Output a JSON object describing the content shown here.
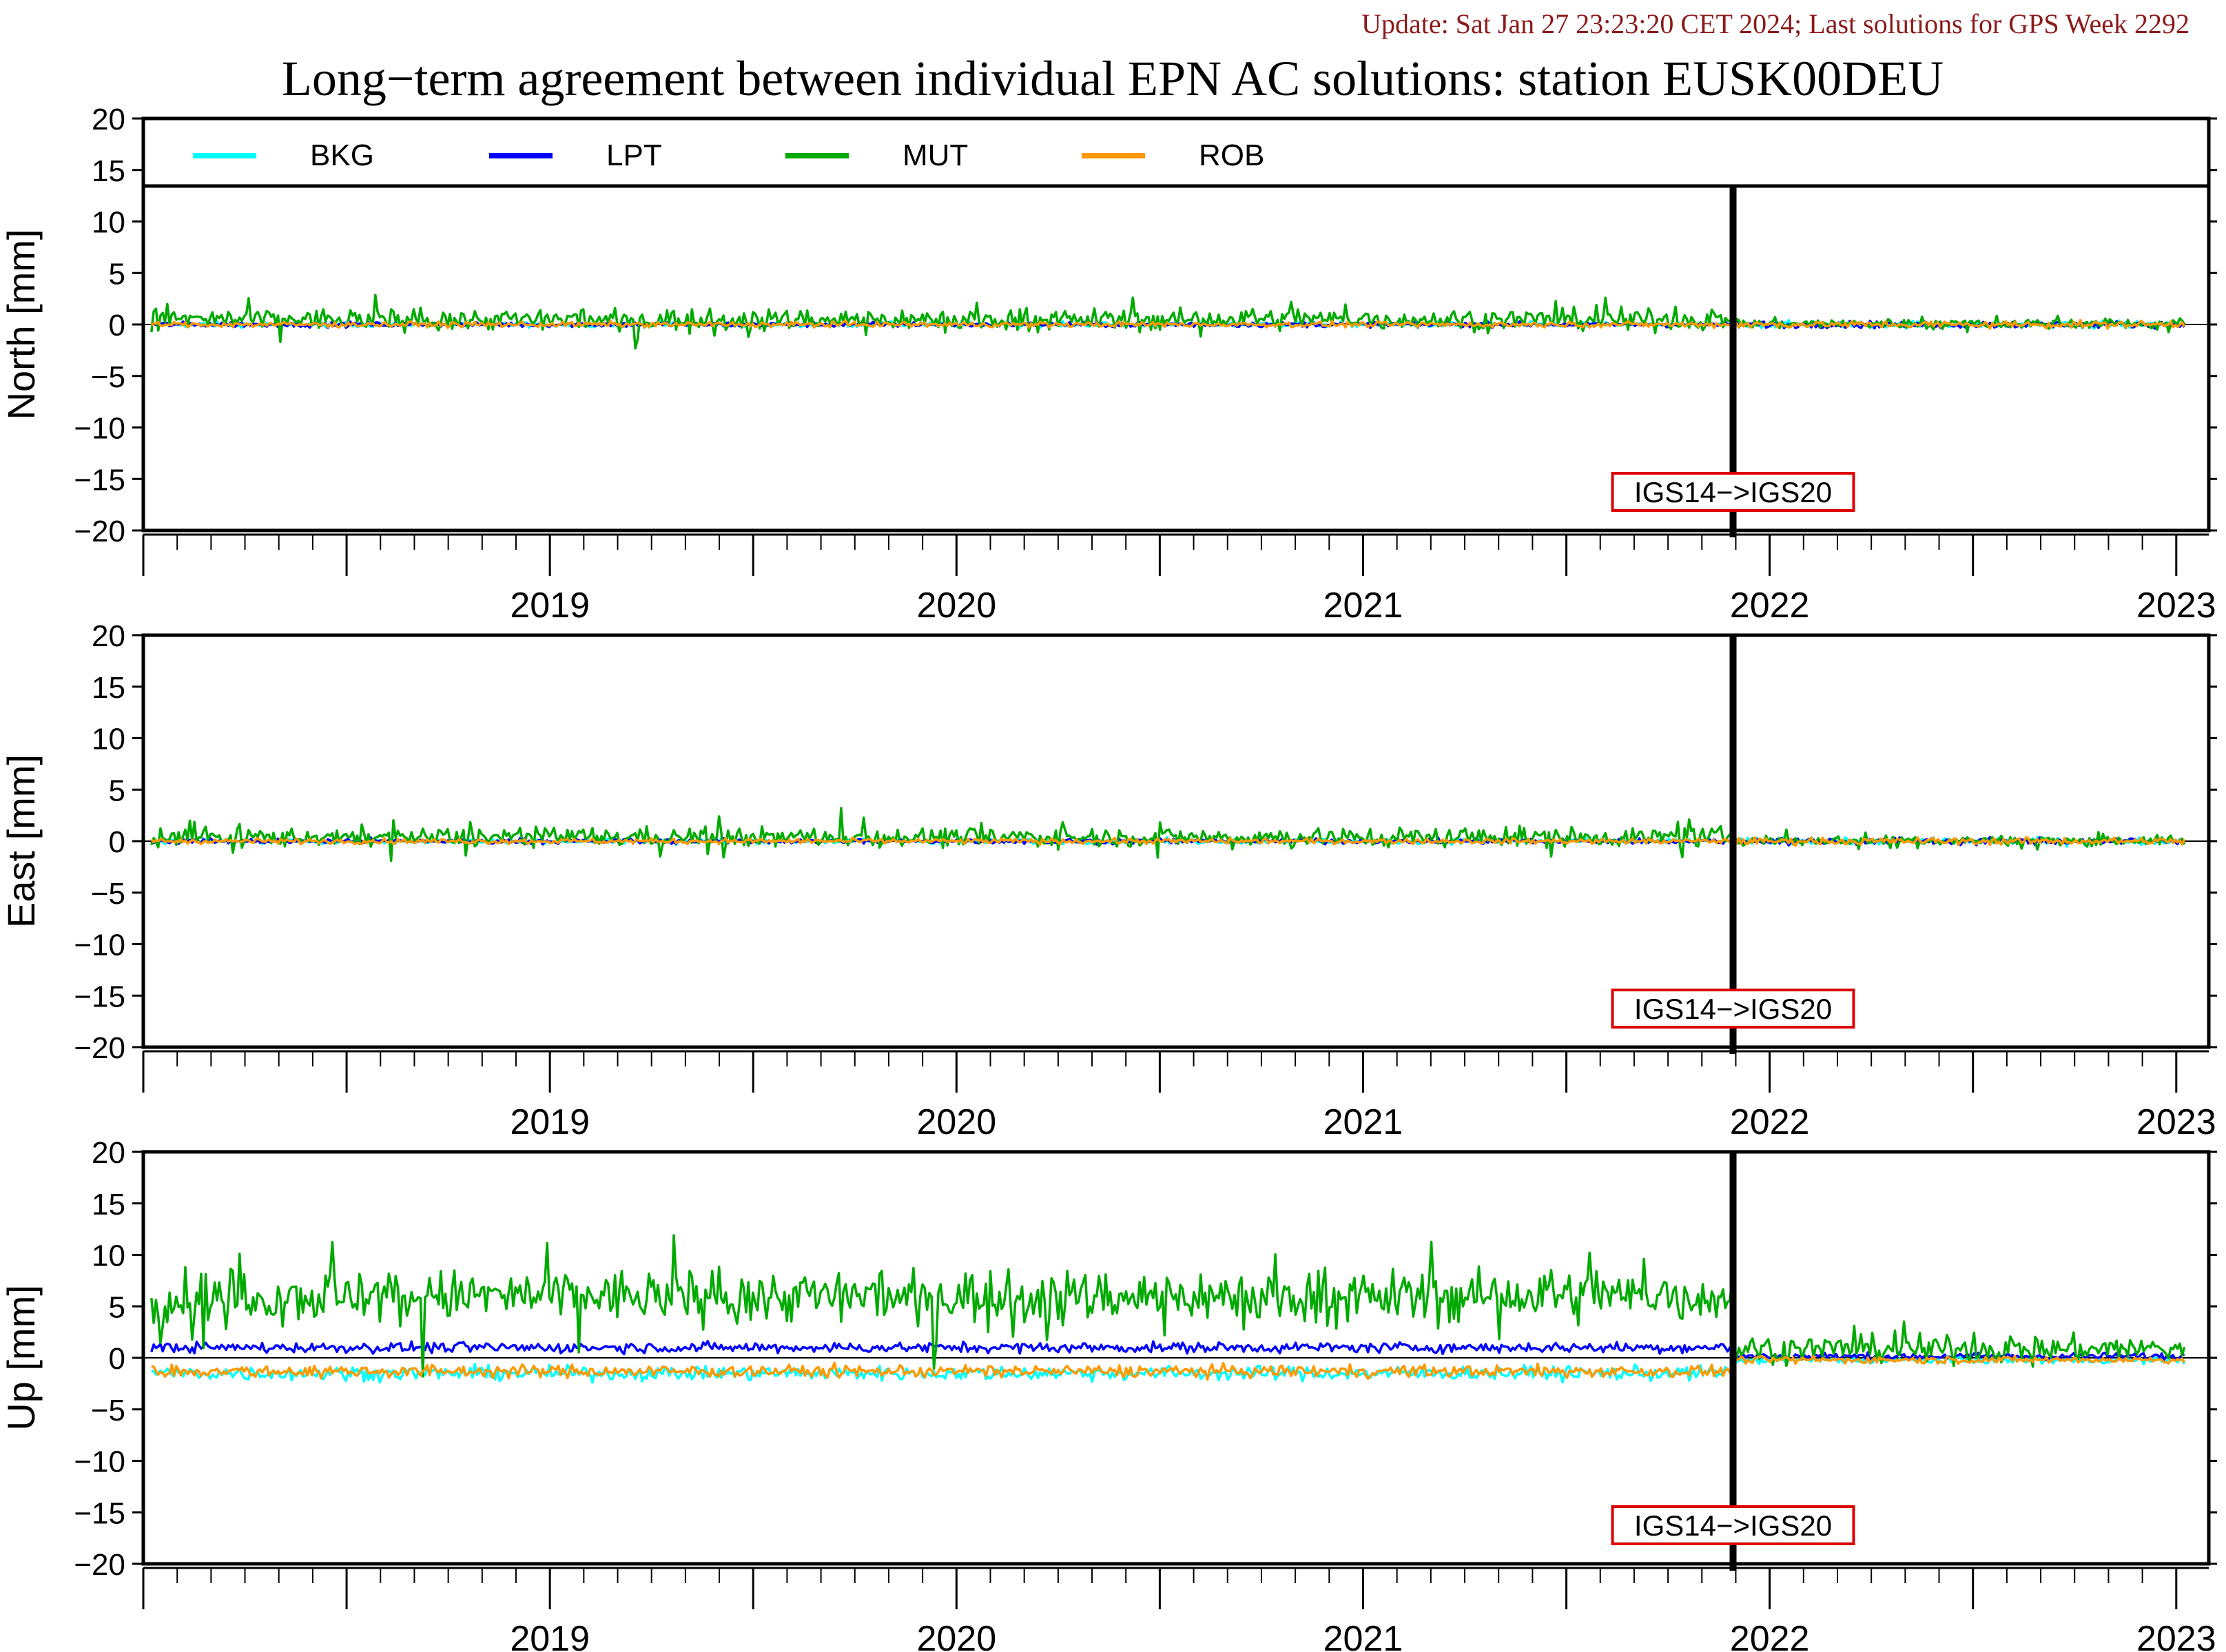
{
  "update_text": "Update: Sat Jan 27 23:23:20 CET 2024; Last solutions for GPS Week 2292",
  "title": "Long−term agreement between individual EPN AC solutions: station EUSK00DEU",
  "legend": [
    {
      "name": "BKG",
      "color": "#00ffff"
    },
    {
      "name": "LPT",
      "color": "#0000ff"
    },
    {
      "name": "MUT",
      "color": "#00aa00"
    },
    {
      "name": "ROB",
      "color": "#ff9900"
    }
  ],
  "chart_data": [
    {
      "type": "line",
      "ylabel": "North [mm]",
      "ylim": [
        -20,
        20
      ],
      "yticks": [
        20,
        15,
        10,
        5,
        0,
        -5,
        -10,
        -15,
        -20
      ],
      "xlim": [
        2018.5,
        2023.58
      ],
      "xtick_labels": [
        "2019",
        "2020",
        "2021",
        "2022",
        "2023"
      ],
      "reference_change": {
        "x": 2022.41,
        "label": "IGS14−>IGS20"
      },
      "series": [
        {
          "name": "BKG",
          "typical_level": 0.0,
          "spread": 0.3
        },
        {
          "name": "LPT",
          "typical_level": 0.0,
          "spread": 0.3
        },
        {
          "name": "MUT",
          "typical_level": 0.5,
          "spread": 1.2
        },
        {
          "name": "ROB",
          "typical_level": 0.0,
          "spread": 0.3
        }
      ]
    },
    {
      "type": "line",
      "ylabel": "East [mm]",
      "ylim": [
        -20,
        20
      ],
      "yticks": [
        20,
        15,
        10,
        5,
        0,
        -5,
        -10,
        -15,
        -20
      ],
      "xlim": [
        2018.5,
        2023.58
      ],
      "xtick_labels": [
        "2019",
        "2020",
        "2021",
        "2022",
        "2023"
      ],
      "reference_change": {
        "x": 2022.41,
        "label": "IGS14−>IGS20"
      },
      "series": [
        {
          "name": "BKG",
          "typical_level": 0.0,
          "spread": 0.3
        },
        {
          "name": "LPT",
          "typical_level": 0.0,
          "spread": 0.3
        },
        {
          "name": "MUT",
          "typical_level": 0.4,
          "spread": 1.1
        },
        {
          "name": "ROB",
          "typical_level": 0.0,
          "spread": 0.3
        }
      ]
    },
    {
      "type": "line",
      "ylabel": "Up [mm]",
      "ylim": [
        -20,
        20
      ],
      "yticks": [
        20,
        15,
        10,
        5,
        0,
        -5,
        -10,
        -15,
        -20
      ],
      "xlim": [
        2018.5,
        2023.58
      ],
      "xtick_labels": [
        "2019",
        "2020",
        "2021",
        "2022",
        "2023"
      ],
      "reference_change": {
        "x": 2022.41,
        "label": "IGS14−>IGS20"
      },
      "series": [
        {
          "name": "BKG",
          "typical_level": -1.5,
          "spread": 0.8
        },
        {
          "name": "LPT",
          "typical_level": 1.0,
          "spread": 0.6
        },
        {
          "name": "MUT",
          "typical_level": 6.0,
          "spread": 3.0
        },
        {
          "name": "ROB",
          "typical_level": -1.3,
          "spread": 0.7
        }
      ]
    }
  ]
}
